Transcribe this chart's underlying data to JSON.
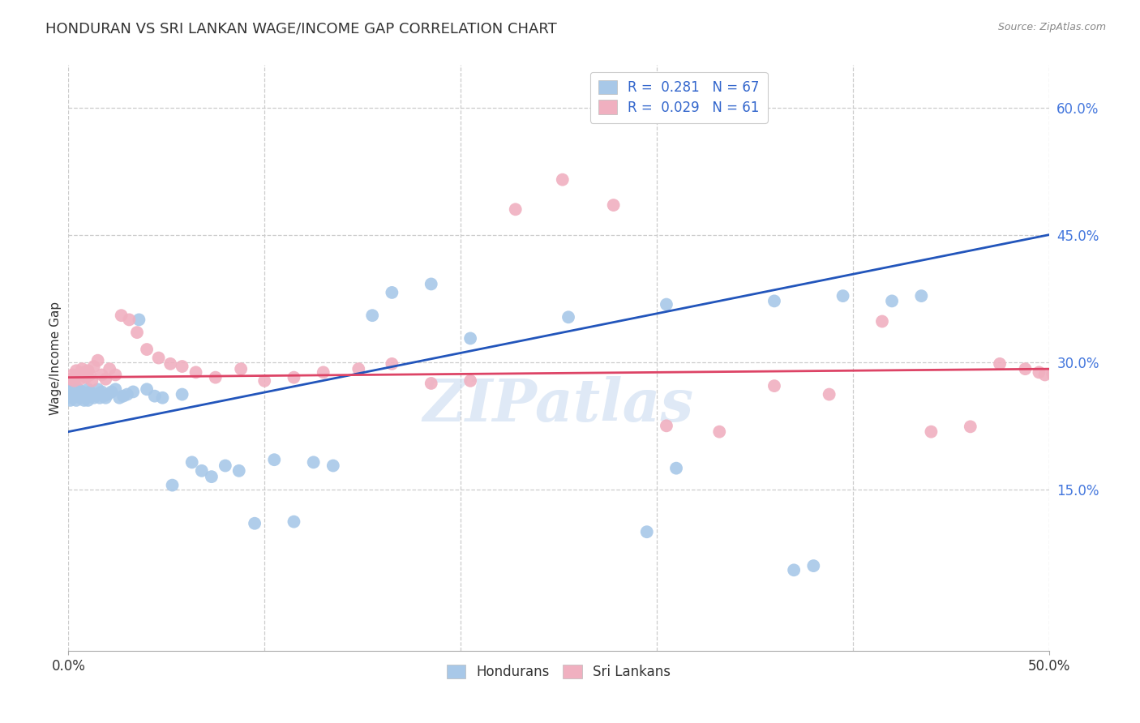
{
  "title": "HONDURAN VS SRI LANKAN WAGE/INCOME GAP CORRELATION CHART",
  "source": "Source: ZipAtlas.com",
  "ylabel": "Wage/Income Gap",
  "xlim": [
    0.0,
    0.5
  ],
  "ylim": [
    -0.04,
    0.65
  ],
  "xticks": [
    0.0,
    0.5
  ],
  "xticklabels": [
    "0.0%",
    "50.0%"
  ],
  "yticks": [
    0.15,
    0.3,
    0.45,
    0.6
  ],
  "yticklabels": [
    "15.0%",
    "30.0%",
    "45.0%",
    "60.0%"
  ],
  "blue_color": "#a8c8e8",
  "pink_color": "#f0b0c0",
  "blue_line_color": "#2255bb",
  "pink_line_color": "#dd4466",
  "blue_R": 0.281,
  "blue_N": 67,
  "pink_R": 0.029,
  "pink_N": 61,
  "blue_line_x": [
    0.0,
    0.5
  ],
  "blue_line_y": [
    0.218,
    0.45
  ],
  "pink_line_x": [
    0.0,
    0.5
  ],
  "pink_line_y": [
    0.282,
    0.292
  ],
  "honduran_x": [
    0.001,
    0.001,
    0.001,
    0.001,
    0.002,
    0.002,
    0.002,
    0.003,
    0.003,
    0.004,
    0.004,
    0.005,
    0.005,
    0.006,
    0.006,
    0.007,
    0.008,
    0.008,
    0.009,
    0.01,
    0.01,
    0.011,
    0.012,
    0.013,
    0.014,
    0.015,
    0.016,
    0.017,
    0.018,
    0.019,
    0.02,
    0.022,
    0.024,
    0.026,
    0.028,
    0.03,
    0.033,
    0.036,
    0.04,
    0.044,
    0.048,
    0.053,
    0.058,
    0.063,
    0.068,
    0.073,
    0.08,
    0.087,
    0.095,
    0.105,
    0.115,
    0.125,
    0.135,
    0.155,
    0.165,
    0.185,
    0.205,
    0.255,
    0.305,
    0.36,
    0.395,
    0.42,
    0.435,
    0.37,
    0.38,
    0.31,
    0.295
  ],
  "honduran_y": [
    0.27,
    0.265,
    0.26,
    0.255,
    0.268,
    0.262,
    0.258,
    0.275,
    0.265,
    0.26,
    0.255,
    0.268,
    0.262,
    0.26,
    0.258,
    0.265,
    0.26,
    0.255,
    0.262,
    0.268,
    0.255,
    0.265,
    0.26,
    0.258,
    0.262,
    0.268,
    0.258,
    0.265,
    0.26,
    0.258,
    0.262,
    0.265,
    0.268,
    0.258,
    0.26,
    0.262,
    0.265,
    0.35,
    0.268,
    0.26,
    0.258,
    0.155,
    0.262,
    0.182,
    0.172,
    0.165,
    0.178,
    0.172,
    0.11,
    0.185,
    0.112,
    0.182,
    0.178,
    0.355,
    0.382,
    0.392,
    0.328,
    0.353,
    0.368,
    0.372,
    0.378,
    0.372,
    0.378,
    0.055,
    0.06,
    0.175,
    0.1
  ],
  "srilankan_x": [
    0.001,
    0.002,
    0.003,
    0.004,
    0.005,
    0.006,
    0.007,
    0.008,
    0.009,
    0.01,
    0.011,
    0.012,
    0.013,
    0.015,
    0.017,
    0.019,
    0.021,
    0.024,
    0.027,
    0.031,
    0.035,
    0.04,
    0.046,
    0.052,
    0.058,
    0.065,
    0.075,
    0.088,
    0.1,
    0.115,
    0.13,
    0.148,
    0.165,
    0.185,
    0.205,
    0.228,
    0.252,
    0.278,
    0.305,
    0.332,
    0.36,
    0.388,
    0.415,
    0.44,
    0.46,
    0.475,
    0.488,
    0.495,
    0.498,
    0.502,
    0.505,
    0.508,
    0.51,
    0.515,
    0.518,
    0.52,
    0.522,
    0.524,
    0.525,
    0.526,
    0.527
  ],
  "srilankan_y": [
    0.28,
    0.285,
    0.278,
    0.29,
    0.285,
    0.28,
    0.292,
    0.288,
    0.282,
    0.29,
    0.285,
    0.278,
    0.295,
    0.302,
    0.285,
    0.28,
    0.292,
    0.285,
    0.355,
    0.35,
    0.335,
    0.315,
    0.305,
    0.298,
    0.295,
    0.288,
    0.282,
    0.292,
    0.278,
    0.282,
    0.288,
    0.292,
    0.298,
    0.275,
    0.278,
    0.48,
    0.515,
    0.485,
    0.225,
    0.218,
    0.272,
    0.262,
    0.348,
    0.218,
    0.224,
    0.298,
    0.292,
    0.288,
    0.285,
    0.286,
    0.283,
    0.292,
    0.282,
    0.275,
    0.29,
    0.28,
    0.292,
    0.285,
    0.28,
    0.292,
    0.288
  ],
  "watermark": "ZIPatlas",
  "background_color": "#ffffff",
  "grid_color": "#cccccc",
  "title_fontsize": 13,
  "axis_label_fontsize": 11,
  "tick_fontsize": 12,
  "marker_size": 130,
  "legend_R_color": "#3366cc",
  "legend_N_color": "#cc3333"
}
